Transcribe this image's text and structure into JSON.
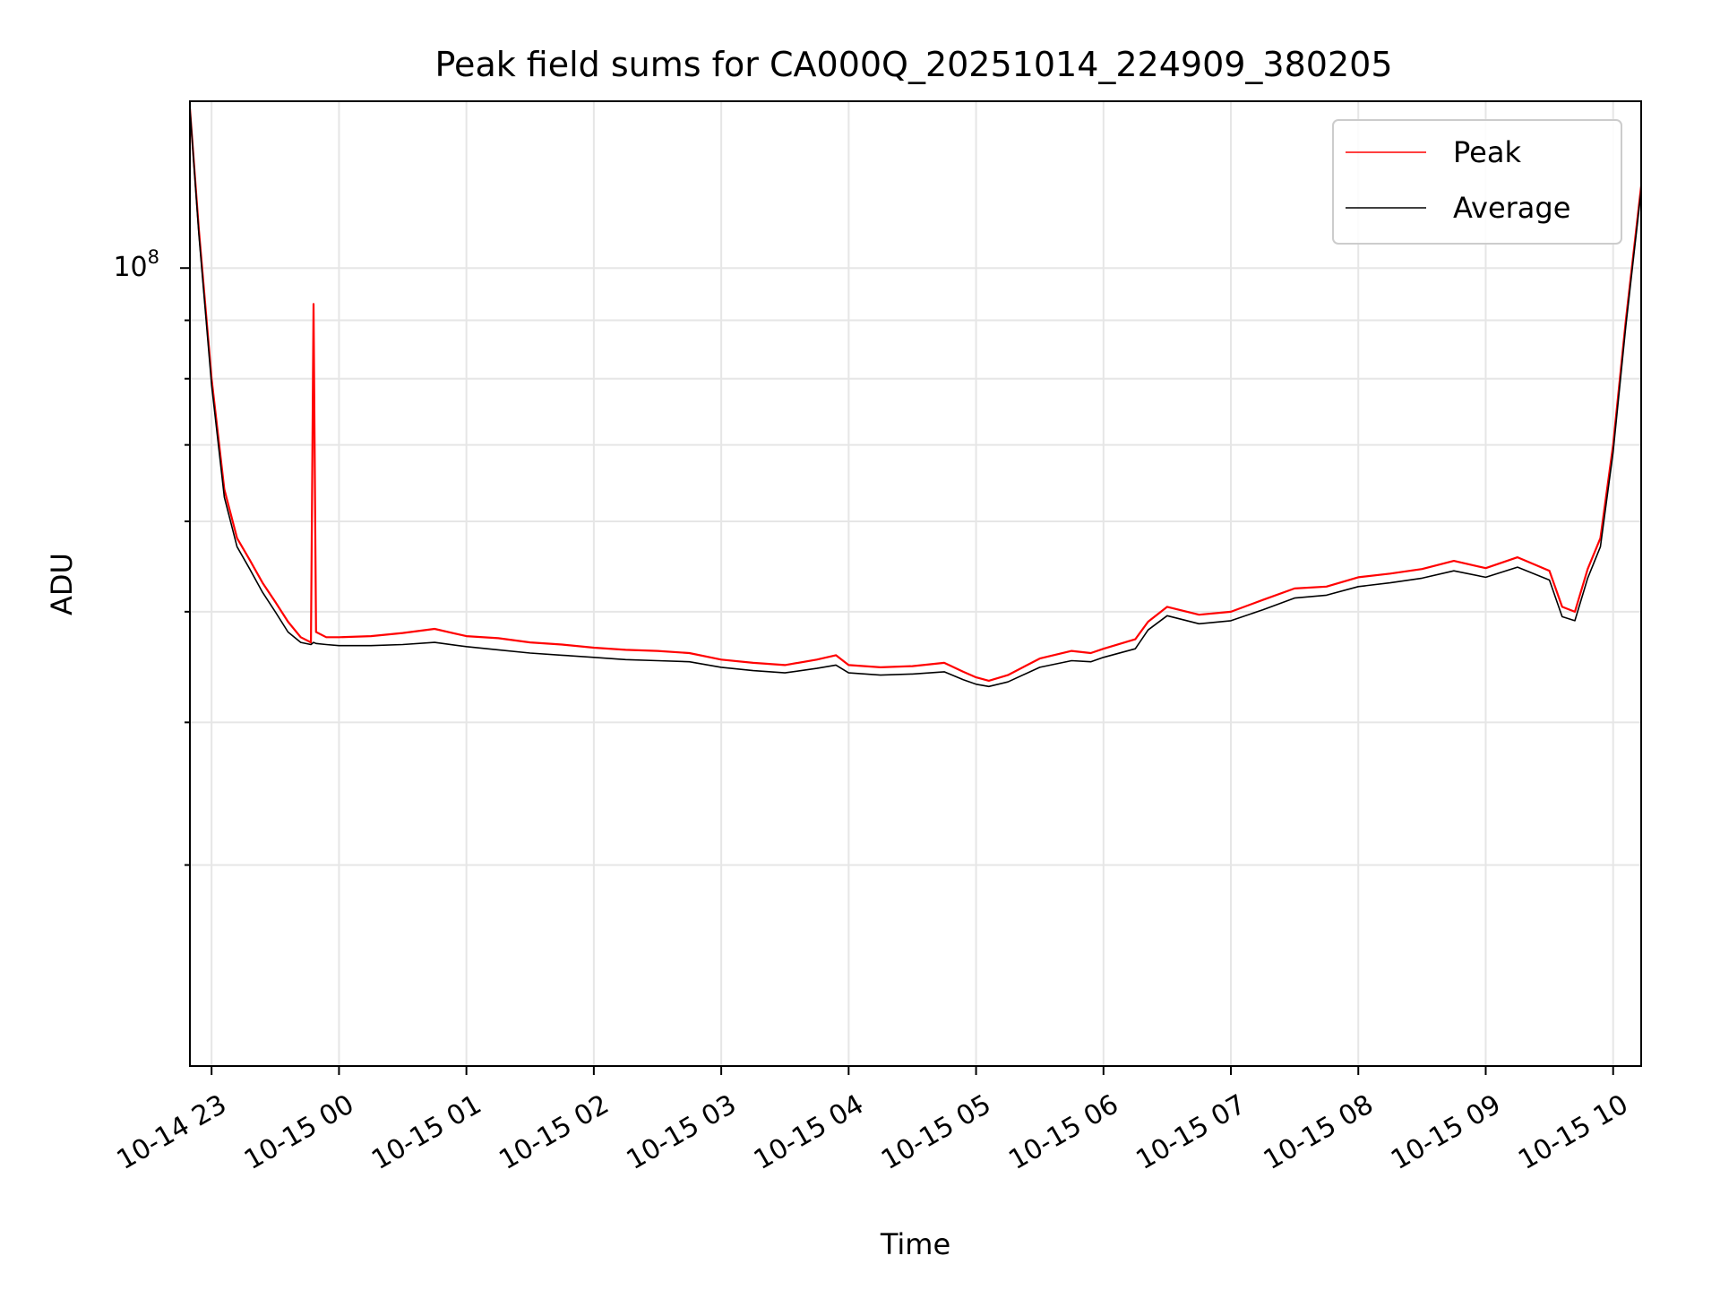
{
  "chart_data": {
    "type": "line",
    "title": "Peak field sums for CA000Q_20251014_224909_380205",
    "xlabel": "Time",
    "ylabel": "ADU",
    "yscale": "log",
    "ylim": [
      20000000,
      140000000
    ],
    "xlim": [
      22.83,
      34.22
    ],
    "grid": true,
    "legend": "top-right",
    "x_ticks": [
      {
        "value": 23,
        "label": "10-14 23"
      },
      {
        "value": 24,
        "label": "10-15 00"
      },
      {
        "value": 25,
        "label": "10-15 01"
      },
      {
        "value": 26,
        "label": "10-15 02"
      },
      {
        "value": 27,
        "label": "10-15 03"
      },
      {
        "value": 28,
        "label": "10-15 04"
      },
      {
        "value": 29,
        "label": "10-15 05"
      },
      {
        "value": 30,
        "label": "10-15 06"
      },
      {
        "value": 31,
        "label": "10-15 07"
      },
      {
        "value": 32,
        "label": "10-15 08"
      },
      {
        "value": 33,
        "label": "10-15 09"
      },
      {
        "value": 34,
        "label": "10-15 10"
      }
    ],
    "y_major_tick": {
      "value": 100000000,
      "base": "10",
      "exponent": "8"
    },
    "y_minor_ticks": [
      30000000,
      40000000,
      50000000,
      60000000,
      70000000,
      80000000,
      90000000
    ],
    "series": [
      {
        "name": "Peak",
        "color": "#ff0000",
        "x": [
          22.83,
          22.9,
          23.0,
          23.1,
          23.2,
          23.3,
          23.4,
          23.5,
          23.6,
          23.7,
          23.78,
          23.8,
          23.82,
          23.9,
          24.0,
          24.25,
          24.5,
          24.75,
          25.0,
          25.25,
          25.5,
          25.75,
          26.0,
          26.25,
          26.5,
          26.75,
          27.0,
          27.25,
          27.5,
          27.75,
          27.9,
          28.0,
          28.25,
          28.5,
          28.75,
          28.9,
          29.0,
          29.1,
          29.25,
          29.5,
          29.75,
          29.9,
          30.0,
          30.25,
          30.35,
          30.5,
          30.75,
          31.0,
          31.25,
          31.5,
          31.75,
          32.0,
          32.25,
          32.5,
          32.75,
          33.0,
          33.25,
          33.5,
          33.6,
          33.7,
          33.8,
          33.9,
          34.0,
          34.1,
          34.22
        ],
        "y": [
          138000000,
          108000000,
          80000000,
          64000000,
          58000000,
          55500000,
          53000000,
          51000000,
          49000000,
          47500000,
          47000000,
          93000000,
          48000000,
          47500000,
          47500000,
          47600000,
          47900000,
          48300000,
          47600000,
          47400000,
          47000000,
          46800000,
          46500000,
          46300000,
          46200000,
          46000000,
          45400000,
          45100000,
          44900000,
          45400000,
          45800000,
          44900000,
          44700000,
          44800000,
          45100000,
          44300000,
          43800000,
          43500000,
          44000000,
          45500000,
          46200000,
          46000000,
          46400000,
          47300000,
          49000000,
          50500000,
          49700000,
          50000000,
          51200000,
          52400000,
          52600000,
          53600000,
          54000000,
          54500000,
          55400000,
          54600000,
          55800000,
          54300000,
          50500000,
          50000000,
          54500000,
          58000000,
          70000000,
          90000000,
          118000000
        ]
      },
      {
        "name": "Average",
        "color": "#000000",
        "x": [
          22.83,
          22.9,
          23.0,
          23.1,
          23.2,
          23.3,
          23.4,
          23.5,
          23.6,
          23.7,
          23.78,
          23.8,
          23.82,
          23.9,
          24.0,
          24.25,
          24.5,
          24.75,
          25.0,
          25.25,
          25.5,
          25.75,
          26.0,
          26.25,
          26.5,
          26.75,
          27.0,
          27.25,
          27.5,
          27.75,
          27.9,
          28.0,
          28.25,
          28.5,
          28.75,
          28.9,
          29.0,
          29.1,
          29.25,
          29.5,
          29.75,
          29.9,
          30.0,
          30.25,
          30.35,
          30.5,
          30.75,
          31.0,
          31.25,
          31.5,
          31.75,
          32.0,
          32.25,
          32.5,
          32.75,
          33.0,
          33.25,
          33.5,
          33.6,
          33.7,
          33.8,
          33.9,
          34.0,
          34.1,
          34.22
        ],
        "y": [
          138000000,
          107000000,
          79000000,
          63000000,
          57000000,
          54500000,
          52000000,
          50000000,
          48000000,
          47000000,
          46800000,
          47000000,
          46900000,
          46800000,
          46700000,
          46700000,
          46800000,
          47000000,
          46600000,
          46300000,
          46000000,
          45800000,
          45600000,
          45400000,
          45300000,
          45200000,
          44700000,
          44400000,
          44200000,
          44600000,
          44900000,
          44200000,
          44000000,
          44100000,
          44300000,
          43600000,
          43200000,
          43000000,
          43400000,
          44700000,
          45300000,
          45200000,
          45600000,
          46400000,
          48200000,
          49600000,
          48800000,
          49100000,
          50200000,
          51400000,
          51700000,
          52600000,
          53000000,
          53500000,
          54300000,
          53600000,
          54700000,
          53300000,
          49500000,
          49100000,
          53500000,
          57000000,
          69000000,
          89000000,
          117000000
        ]
      }
    ]
  }
}
